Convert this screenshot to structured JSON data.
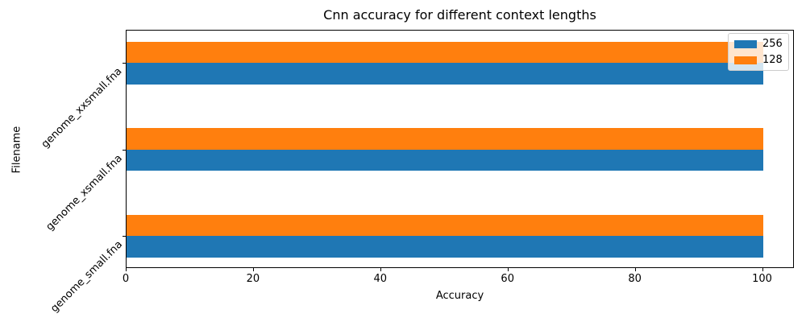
{
  "chart_data": {
    "type": "bar",
    "orientation": "horizontal",
    "title": "Cnn accuracy for different context lengths",
    "xlabel": "Accuracy",
    "ylabel": "Filename",
    "categories_top_to_bottom": [
      "genome_xxsmall.fna",
      "genome_xsmall.fna",
      "genome_small.fna"
    ],
    "series": [
      {
        "name": "256",
        "color": "#1f77b4",
        "values": [
          100,
          100,
          100
        ]
      },
      {
        "name": "128",
        "color": "#ff7f0e",
        "values": [
          100,
          100,
          100
        ]
      }
    ],
    "series_note": "within each category group the 256 (blue) bar is drawn below the tick, the 128 (orange) bar above it; values are per categories_top_to_bottom",
    "xlim": [
      0,
      105
    ],
    "xticks": [
      0,
      20,
      40,
      60,
      80,
      100
    ],
    "grid": false,
    "legend_position": "upper right",
    "legend_entries": [
      "256",
      "128"
    ],
    "background_color": "#ffffff",
    "text_color": "#000000"
  }
}
